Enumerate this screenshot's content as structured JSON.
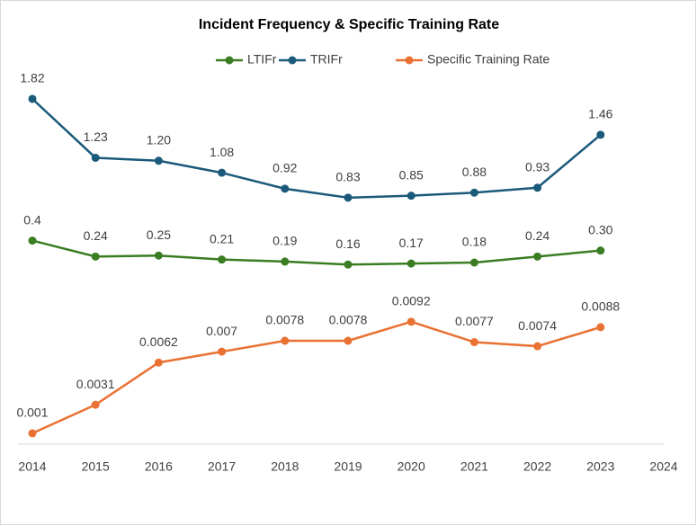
{
  "chart_data": {
    "type": "line",
    "title": "Incident Frequency & Specific Training Rate",
    "categories": [
      "2014",
      "2015",
      "2016",
      "2017",
      "2018",
      "2019",
      "2020",
      "2021",
      "2022",
      "2023",
      "2024"
    ],
    "ylim": [
      -1.64,
      2.0
    ],
    "y2lim": [
      0.0002,
      0.0269
    ],
    "series": [
      {
        "name": "LTIFr",
        "color": "#3a7d22",
        "values": [
          0.4,
          0.24,
          0.25,
          0.21,
          0.19,
          0.16,
          0.17,
          0.18,
          0.24,
          0.3,
          null
        ],
        "value_labels": [
          "0.4",
          "0.24",
          "0.25",
          "0.21",
          "0.19",
          "0.16",
          "0.17",
          "0.18",
          "0.24",
          "0.30",
          null
        ]
      },
      {
        "name": "TRIFr",
        "color": "#1b5a7a",
        "values": [
          1.82,
          1.23,
          1.2,
          1.08,
          0.92,
          0.83,
          0.85,
          0.88,
          0.93,
          1.46,
          null
        ],
        "value_labels": [
          "1.82",
          "1.23",
          "1.20",
          "1.08",
          "0.92",
          "0.83",
          "0.85",
          "0.88",
          "0.93",
          "1.46",
          null
        ]
      },
      {
        "name": "Specific Training Rate",
        "color": "#e97132",
        "axis": "y2",
        "values": [
          0.001,
          0.0031,
          0.0062,
          0.007,
          0.0078,
          0.0078,
          0.0092,
          0.0077,
          0.0074,
          0.0088,
          null
        ],
        "value_labels": [
          "0.001",
          "0.0031",
          "0.0062",
          "0.007",
          "0.0078",
          "0.0078",
          "0.0092",
          "0.0077",
          "0.0074",
          "0.0088",
          null
        ]
      }
    ]
  }
}
